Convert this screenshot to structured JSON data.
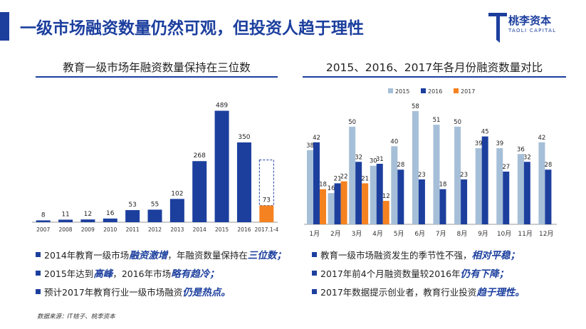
{
  "header": {
    "title": "一级市场融资数量仍然可观，但投资人趋于理性",
    "logo_text": "桃李资本",
    "logo_sub": "TAOLI CAPITAL"
  },
  "colors": {
    "brand": "#1c3f9e",
    "series_2015": "#a6bfd8",
    "series_2016": "#1c3f9e",
    "series_2017": "#f58220"
  },
  "chart_data": [
    {
      "type": "bar",
      "title": "教育一级市场年融资数量保持在三位数",
      "categories": [
        "2007",
        "2008",
        "2009",
        "2010",
        "2011",
        "2012",
        "2013",
        "2014",
        "2015",
        "2016",
        "2017.1-4"
      ],
      "values": [
        8,
        11,
        12,
        16,
        53,
        55,
        102,
        268,
        489,
        350,
        73
      ],
      "highlight_last": true,
      "ylim": [
        0,
        500
      ],
      "xlabel": "",
      "ylabel": ""
    },
    {
      "type": "bar",
      "title": "2015、2016、2017年各月份融资数量对比",
      "categories": [
        "1月",
        "2月",
        "3月",
        "4月",
        "5月",
        "6月",
        "7月",
        "8月",
        "9月",
        "10月",
        "11月",
        "12月"
      ],
      "series": [
        {
          "name": "2015",
          "values": [
            38,
            16,
            50,
            30,
            40,
            58,
            51,
            50,
            39,
            39,
            36,
            42
          ]
        },
        {
          "name": "2016",
          "values": [
            42,
            21,
            32,
            31,
            28,
            23,
            18,
            23,
            45,
            27,
            32,
            28
          ]
        },
        {
          "name": "2017",
          "values": [
            18,
            22,
            21,
            12,
            null,
            null,
            null,
            null,
            null,
            null,
            null,
            null
          ]
        }
      ],
      "legend": "top-left",
      "ylim": [
        0,
        62
      ]
    }
  ],
  "left_bullets": [
    {
      "parts": [
        {
          "t": "2014年教育一级市场",
          "hl": false
        },
        {
          "t": "融资激增",
          "hl": true
        },
        {
          "t": "，年融资数量保持在",
          "hl": false
        },
        {
          "t": "三位数；",
          "hl": true
        }
      ]
    },
    {
      "parts": [
        {
          "t": "2015年达到",
          "hl": false
        },
        {
          "t": "高峰",
          "hl": true
        },
        {
          "t": "，2016年市场",
          "hl": false
        },
        {
          "t": "略有趋冷；",
          "hl": true
        }
      ]
    },
    {
      "parts": [
        {
          "t": "预计2017年教育行业一级市场融资",
          "hl": false
        },
        {
          "t": "仍是热点。",
          "hl": true
        }
      ]
    }
  ],
  "right_bullets": [
    {
      "parts": [
        {
          "t": "教育一级市场融资发生的季节性不强，",
          "hl": false
        },
        {
          "t": "相对平稳；",
          "hl": true
        }
      ]
    },
    {
      "parts": [
        {
          "t": "2017年前4个月融资数量较2016年",
          "hl": false
        },
        {
          "t": "仍有下降；",
          "hl": true
        }
      ]
    },
    {
      "parts": [
        {
          "t": "2017年数据提示创业者，教育行业投资",
          "hl": false
        },
        {
          "t": "趋于理性。",
          "hl": true
        }
      ]
    }
  ],
  "source": "数据来源：IT桔子、桃李资本"
}
